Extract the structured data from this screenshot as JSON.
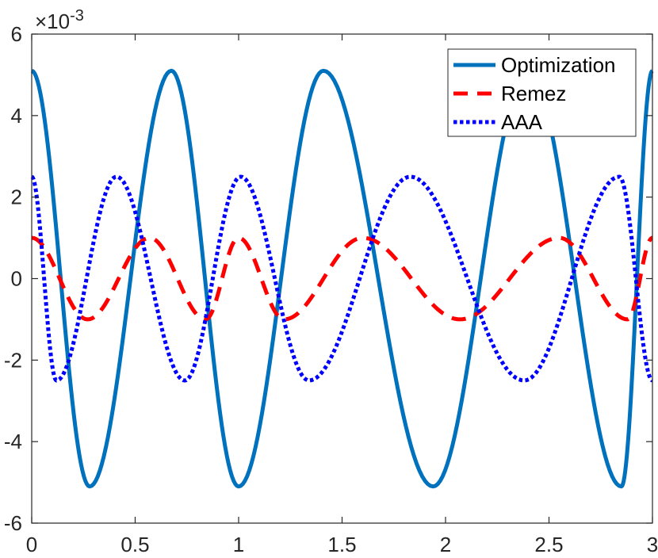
{
  "chart_data": {
    "type": "line",
    "title": "",
    "xlabel": "",
    "ylabel": "",
    "xlim": [
      0,
      3
    ],
    "ylim": [
      -0.006,
      0.006
    ],
    "y_exponent_label": {
      "base": "×10",
      "exponent": "-3"
    },
    "x_ticks": [
      {
        "value": 0,
        "label": "0"
      },
      {
        "value": 0.5,
        "label": "0.5"
      },
      {
        "value": 1,
        "label": "1"
      },
      {
        "value": 1.5,
        "label": "1.5"
      },
      {
        "value": 2,
        "label": "2"
      },
      {
        "value": 2.5,
        "label": "2.5"
      },
      {
        "value": 3,
        "label": "3"
      }
    ],
    "y_ticks": [
      {
        "value": -0.006,
        "label": "-6"
      },
      {
        "value": -0.004,
        "label": "-4"
      },
      {
        "value": -0.002,
        "label": "-2"
      },
      {
        "value": 0,
        "label": "0"
      },
      {
        "value": 0.002,
        "label": "2"
      },
      {
        "value": 0.004,
        "label": "4"
      },
      {
        "value": 0.006,
        "label": "6"
      }
    ],
    "grid": false,
    "legend_position": "top-right",
    "series": [
      {
        "name": "Optimization",
        "color": "#0072BD",
        "style": "solid",
        "x": [
          0,
          0.28,
          0.675,
          1.0,
          1.41,
          1.94,
          2.4,
          2.85,
          3.0
        ],
        "y": [
          0.0051,
          -0.0051,
          0.0051,
          -0.0051,
          0.0051,
          -0.0051,
          0.0051,
          -0.0051,
          0.0051
        ]
      },
      {
        "name": "Remez",
        "color": "#FF0000",
        "style": "dashed",
        "x": [
          0,
          0.27,
          0.57,
          0.84,
          1.0,
          1.22,
          1.6,
          2.07,
          2.55,
          2.88,
          3.0
        ],
        "y": [
          0.001,
          -0.001,
          0.001,
          -0.001,
          0.001,
          -0.001,
          0.001,
          -0.001,
          0.001,
          -0.001,
          0.001
        ]
      },
      {
        "name": "AAA",
        "color": "#0000FF",
        "style": "dotted",
        "x": [
          0,
          0.12,
          0.41,
          0.74,
          1.01,
          1.34,
          1.83,
          2.38,
          2.84,
          3.0
        ],
        "y": [
          0.0025,
          -0.0025,
          0.0025,
          -0.0025,
          0.0025,
          -0.0025,
          0.0025,
          -0.0025,
          0.0025,
          -0.0025
        ]
      }
    ]
  }
}
